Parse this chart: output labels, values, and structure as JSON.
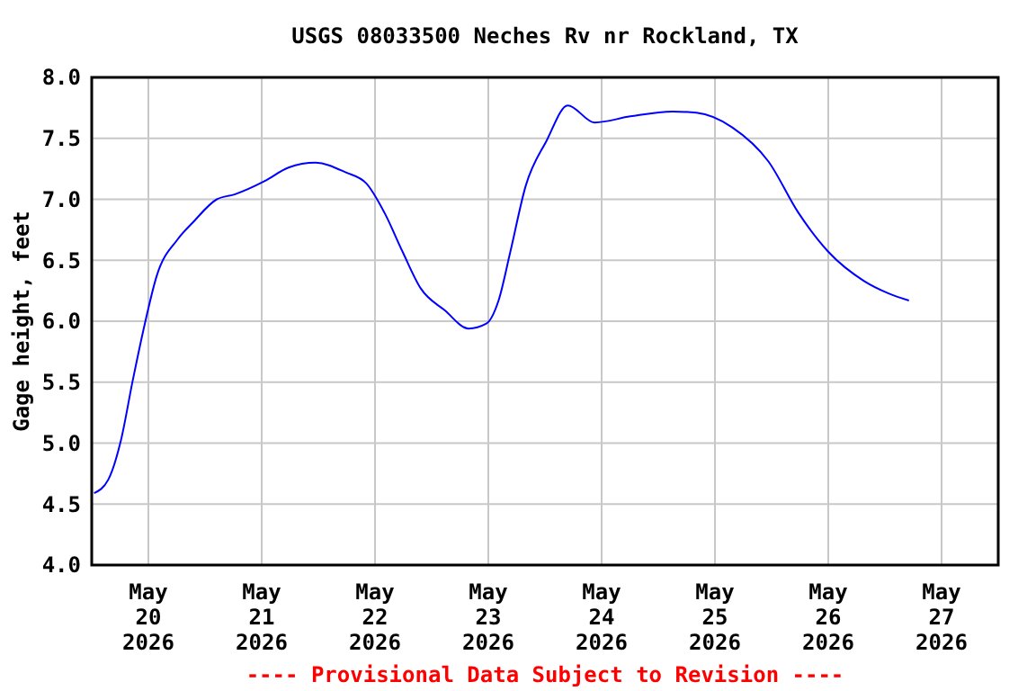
{
  "chart_data": {
    "type": "line",
    "title": "USGS 08033500 Neches Rv nr Rockland, TX",
    "ylabel": "Gage height, feet",
    "annotations": [
      "---- Provisional Data Subject to Revision ----"
    ],
    "xlim": [
      "2026-05-19T12:00",
      "2026-05-27T12:00"
    ],
    "xticks": [
      {
        "value": "2026-05-20",
        "label": "May\n20\n2026"
      },
      {
        "value": "2026-05-21",
        "label": "May\n21\n2026"
      },
      {
        "value": "2026-05-22",
        "label": "May\n22\n2026"
      },
      {
        "value": "2026-05-23",
        "label": "May\n23\n2026"
      },
      {
        "value": "2026-05-24",
        "label": "May\n24\n2026"
      },
      {
        "value": "2026-05-25",
        "label": "May\n25\n2026"
      },
      {
        "value": "2026-05-26",
        "label": "May\n26\n2026"
      },
      {
        "value": "2026-05-27",
        "label": "May\n27\n2026"
      }
    ],
    "ylim": [
      4,
      8
    ],
    "yticks": [
      {
        "value": 4,
        "label": "4.0"
      },
      {
        "value": 4.5,
        "label": "4.5"
      },
      {
        "value": 5,
        "label": "5.0"
      },
      {
        "value": 5.5,
        "label": "5.5"
      },
      {
        "value": 6,
        "label": "6.0"
      },
      {
        "value": 6.5,
        "label": "6.5"
      },
      {
        "value": 7,
        "label": "7.0"
      },
      {
        "value": 7.5,
        "label": "7.5"
      },
      {
        "value": 8,
        "label": "8.0"
      }
    ],
    "grid": true,
    "x": [
      "2026-05-19T12:30",
      "2026-05-19T15:30",
      "2026-05-19T18:10",
      "2026-05-19T20:40",
      "2026-05-19T23:15",
      "2026-05-20T01:45",
      "2026-05-20T06:10",
      "2026-05-20T09:25",
      "2026-05-20T14:30",
      "2026-05-20T18:15",
      "2026-05-21T00:40",
      "2026-05-21T05:40",
      "2026-05-21T11:25",
      "2026-05-21T17:50",
      "2026-05-21T22:10",
      "2026-05-22T02:00",
      "2026-05-22T05:50",
      "2026-05-22T09:40",
      "2026-05-22T14:45",
      "2026-05-22T19:50",
      "2026-05-22T23:35",
      "2026-05-23T02:10",
      "2026-05-23T04:40",
      "2026-05-23T07:55",
      "2026-05-23T12:20",
      "2026-05-23T16:50",
      "2026-05-23T22:30",
      "2026-05-24T06:05",
      "2026-05-24T15:00",
      "2026-05-24T20:05",
      "2026-05-25T03:40",
      "2026-05-25T11:20",
      "2026-05-25T17:40",
      "2026-05-26T00:00",
      "2026-05-26T07:35",
      "2026-05-26T12:40",
      "2026-05-26T17:05"
    ],
    "series": [
      {
        "color": "#0000ff",
        "values": [
          4.59,
          4.7,
          5.02,
          5.51,
          5.98,
          6.37,
          6.67,
          6.81,
          7.0,
          7.04,
          7.15,
          7.26,
          7.3,
          7.22,
          7.13,
          6.89,
          6.57,
          6.27,
          6.09,
          5.94,
          5.98,
          6.17,
          6.57,
          7.11,
          7.48,
          7.77,
          7.63,
          7.68,
          7.72,
          7.71,
          7.59,
          7.31,
          6.89,
          6.57,
          6.33,
          6.23,
          6.17
        ]
      }
    ]
  }
}
